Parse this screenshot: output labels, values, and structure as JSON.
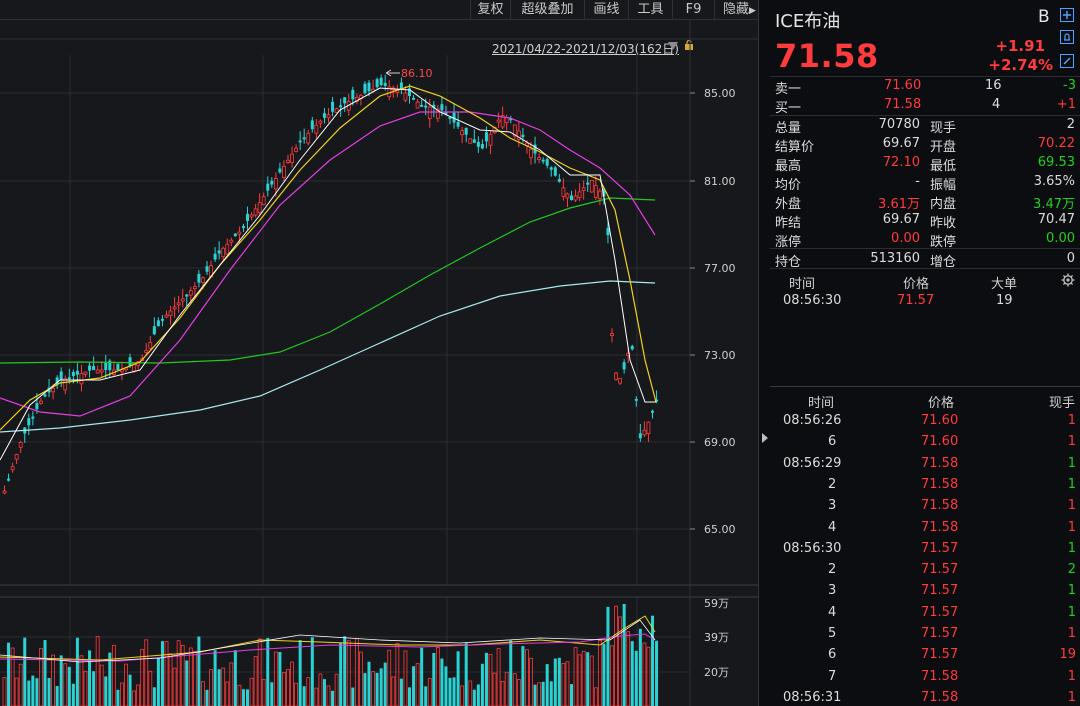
{
  "toolbar": {
    "items": [
      "复权",
      "超级叠加",
      "画线",
      "工具",
      "F9",
      "隐藏"
    ]
  },
  "chart": {
    "range_label": "2021/04/22-2021/12/03(162日)",
    "y_axis_labels": [
      "85.00",
      "81.00",
      "77.00",
      "73.00",
      "69.00",
      "65.00"
    ],
    "peak_label": "86.10",
    "volume_axis_labels": [
      "59万",
      "39万",
      "20万"
    ],
    "colors": {
      "up": "#ff3b3b",
      "down": "#29d3d3",
      "ma5": "#ffffff",
      "ma10": "#f2d21b",
      "ma20": "#e23ee0",
      "ma60": "#23c623",
      "ma120": "#a8e8ee"
    }
  },
  "chart_data": {
    "type": "candlestick",
    "x_range": [
      "2021/04/22",
      "2021/12/03"
    ],
    "ylim": [
      63.7,
      87.1
    ],
    "highlighted_high": 86.1,
    "series": [
      {
        "name": "MA20",
        "values": [
          73.8,
          70.5,
          70.4,
          71.5,
          74.0,
          78.5,
          82.0,
          83.7,
          84.0,
          84.0,
          83.3,
          82.0,
          81.3,
          80.0,
          77.3
        ]
      },
      {
        "name": "MA60",
        "values": [
          72.9,
          72.9,
          72.9,
          72.9,
          73.4,
          74.2,
          75.5,
          77.2,
          78.3,
          79.0,
          79.7,
          80.1,
          80.3,
          80.0
        ]
      },
      {
        "name": "MA120",
        "values": [
          69.5,
          69.7,
          70.0,
          70.8,
          71.8,
          73.0,
          74.3,
          75.3,
          76.0,
          76.5,
          76.3
        ]
      }
    ]
  },
  "quote": {
    "title": "ICE布油",
    "side_label": "B",
    "last_price": "71.58",
    "change": "+1.91",
    "change_pct": "+2.74%",
    "order_book": [
      {
        "label": "卖一",
        "price": "71.60",
        "qty": "16",
        "delta": "-3"
      },
      {
        "label": "买一",
        "price": "71.58",
        "qty": "4",
        "delta": "+1"
      }
    ],
    "stats": [
      {
        "l1": "总量",
        "v1": "70780",
        "c1": "white",
        "l2": "现手",
        "v2": "2",
        "c2": "white"
      },
      {
        "l1": "结算价",
        "v1": "69.67",
        "c1": "white",
        "l2": "开盘",
        "v2": "70.22",
        "c2": "red"
      },
      {
        "l1": "最高",
        "v1": "72.10",
        "c1": "red",
        "l2": "最低",
        "v2": "69.53",
        "c2": "green"
      },
      {
        "l1": "均价",
        "v1": "-",
        "c1": "white",
        "l2": "振幅",
        "v2": "3.65%",
        "c2": "white"
      },
      {
        "l1": "外盘",
        "v1": "3.61万",
        "c1": "red",
        "l2": "内盘",
        "v2": "3.47万",
        "c2": "green"
      },
      {
        "l1": "昨结",
        "v1": "69.67",
        "c1": "white",
        "l2": "昨收",
        "v2": "70.47",
        "c2": "white"
      },
      {
        "l1": "涨停",
        "v1": "0.00",
        "c1": "red",
        "l2": "跌停",
        "v2": "0.00",
        "c2": "green"
      },
      {
        "l1": "持仓",
        "v1": "513160",
        "c1": "white",
        "l2": "增仓",
        "v2": "0",
        "c2": "white"
      }
    ],
    "big_orders": {
      "headers": [
        "时间",
        "价格",
        "大单"
      ],
      "rows": [
        {
          "time": "08:56:30",
          "price": "71.57",
          "size": "19"
        }
      ]
    },
    "ticks": {
      "headers": [
        "时间",
        "价格",
        "现手"
      ],
      "rows": [
        {
          "time": "08:56:26",
          "price": "71.60",
          "qty": "1",
          "qc": "red"
        },
        {
          "time": "6",
          "price": "71.60",
          "qty": "1",
          "qc": "red"
        },
        {
          "time": "08:56:29",
          "price": "71.58",
          "qty": "1",
          "qc": "green"
        },
        {
          "time": "2",
          "price": "71.58",
          "qty": "1",
          "qc": "green"
        },
        {
          "time": "3",
          "price": "71.58",
          "qty": "1",
          "qc": "red"
        },
        {
          "time": "4",
          "price": "71.58",
          "qty": "1",
          "qc": "red"
        },
        {
          "time": "08:56:30",
          "price": "71.57",
          "qty": "1",
          "qc": "green"
        },
        {
          "time": "2",
          "price": "71.57",
          "qty": "2",
          "qc": "green"
        },
        {
          "time": "3",
          "price": "71.57",
          "qty": "1",
          "qc": "green"
        },
        {
          "time": "4",
          "price": "71.57",
          "qty": "1",
          "qc": "green"
        },
        {
          "time": "5",
          "price": "71.57",
          "qty": "1",
          "qc": "red"
        },
        {
          "time": "6",
          "price": "71.57",
          "qty": "19",
          "qc": "red"
        },
        {
          "time": "7",
          "price": "71.58",
          "qty": "1",
          "qc": "red"
        },
        {
          "time": "08:56:31",
          "price": "71.58",
          "qty": "1",
          "qc": "red"
        }
      ]
    }
  }
}
